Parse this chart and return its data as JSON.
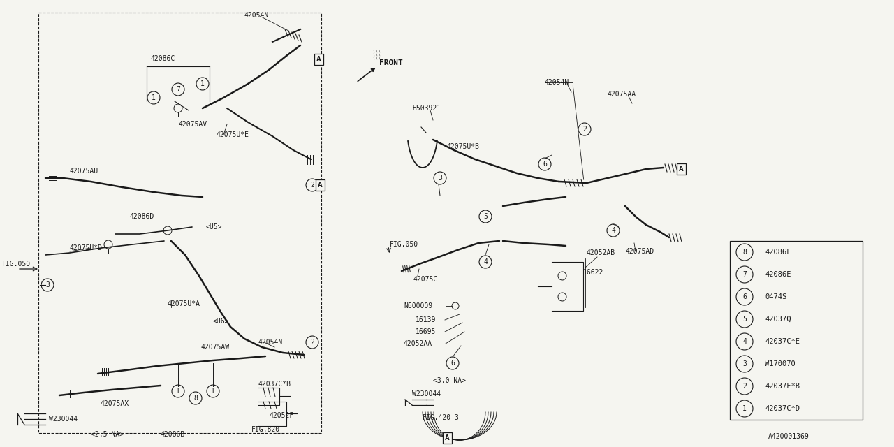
{
  "bg_color": "#F5F5F0",
  "line_color": "#1A1A1A",
  "fig_id": "A420001369",
  "legend_items": [
    {
      "num": "1",
      "code": "42037C*D"
    },
    {
      "num": "2",
      "code": "42037F*B"
    },
    {
      "num": "3",
      "code": "W170070"
    },
    {
      "num": "4",
      "code": "42037C*E"
    },
    {
      "num": "5",
      "code": "42037Q"
    },
    {
      "num": "6",
      "code": "0474S"
    },
    {
      "num": "7",
      "code": "42086E"
    },
    {
      "num": "8",
      "code": "42086F"
    }
  ]
}
